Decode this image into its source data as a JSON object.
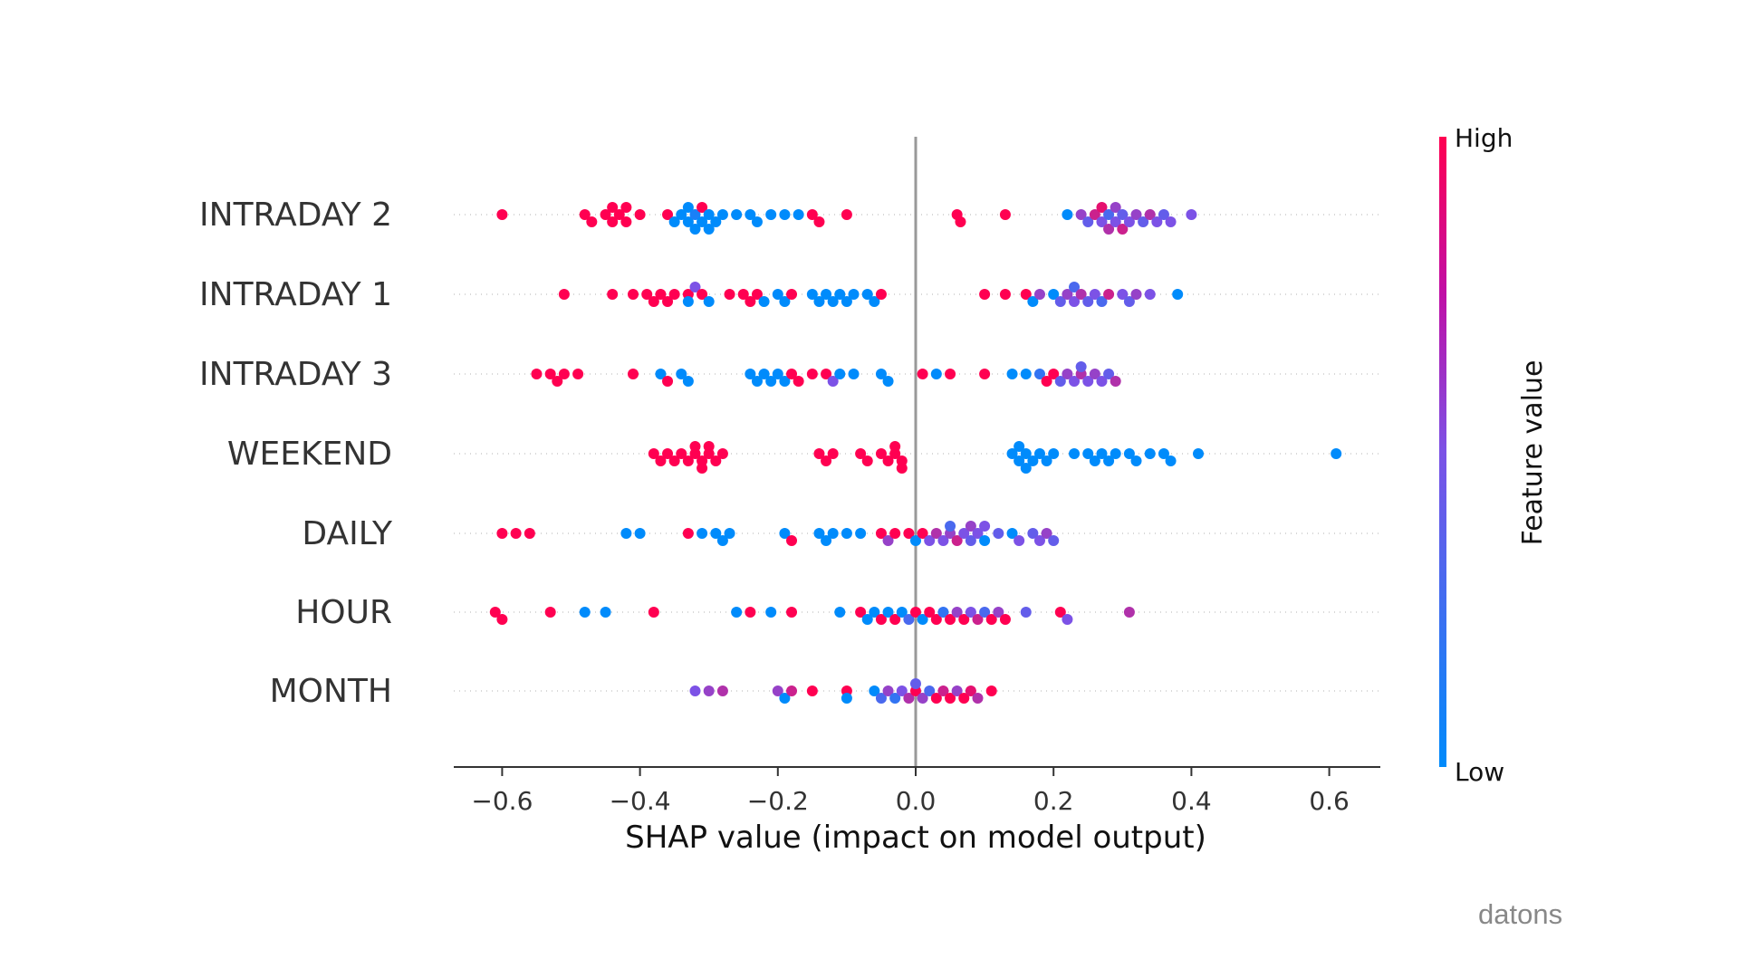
{
  "chart_data": {
    "type": "scatter",
    "subtype": "beeswarm",
    "title": "",
    "xlabel": "SHAP value (impact on model output)",
    "ylabel": "",
    "xlim": [
      -0.67,
      0.67
    ],
    "xticks": [
      -0.6,
      -0.4,
      -0.2,
      0.0,
      0.2,
      0.4,
      0.6
    ],
    "xtick_labels": [
      "−0.6",
      "−0.4",
      "−0.2",
      "0.0",
      "0.2",
      "0.4",
      "0.6"
    ],
    "grid": false,
    "colorbar": {
      "label": "Feature value",
      "high_label": "High",
      "low_label": "Low",
      "low_color": "#008bfb",
      "high_color": "#ff0051"
    },
    "series": [
      {
        "name": "INTRADAY 2",
        "points": [
          [
            -0.6,
            1
          ],
          [
            -0.48,
            1
          ],
          [
            -0.47,
            1
          ],
          [
            -0.45,
            1
          ],
          [
            -0.44,
            1
          ],
          [
            -0.44,
            1
          ],
          [
            -0.43,
            1
          ],
          [
            -0.42,
            1
          ],
          [
            -0.42,
            1
          ],
          [
            -0.4,
            1
          ],
          [
            -0.36,
            1
          ],
          [
            -0.35,
            0
          ],
          [
            -0.34,
            0
          ],
          [
            -0.33,
            0
          ],
          [
            -0.33,
            0
          ],
          [
            -0.32,
            0.1
          ],
          [
            -0.32,
            0
          ],
          [
            -0.31,
            0
          ],
          [
            -0.31,
            1
          ],
          [
            -0.3,
            0
          ],
          [
            -0.3,
            0
          ],
          [
            -0.29,
            0
          ],
          [
            -0.28,
            0
          ],
          [
            -0.26,
            0
          ],
          [
            -0.24,
            0
          ],
          [
            -0.23,
            0
          ],
          [
            -0.21,
            0
          ],
          [
            -0.19,
            0
          ],
          [
            -0.17,
            0
          ],
          [
            -0.15,
            1
          ],
          [
            -0.14,
            1
          ],
          [
            -0.1,
            1
          ],
          [
            0.06,
            1
          ],
          [
            0.065,
            1
          ],
          [
            0.13,
            1
          ],
          [
            0.22,
            0
          ],
          [
            0.24,
            0.6
          ],
          [
            0.25,
            0.4
          ],
          [
            0.26,
            0.8
          ],
          [
            0.27,
            0.5
          ],
          [
            0.27,
            0.9
          ],
          [
            0.28,
            0.3
          ],
          [
            0.28,
            0.7
          ],
          [
            0.29,
            0.5
          ],
          [
            0.29,
            0.6
          ],
          [
            0.3,
            0.4
          ],
          [
            0.3,
            0.8
          ],
          [
            0.31,
            0.5
          ],
          [
            0.32,
            0.6
          ],
          [
            0.33,
            0.4
          ],
          [
            0.34,
            0.7
          ],
          [
            0.35,
            0.5
          ],
          [
            0.36,
            0.4
          ],
          [
            0.37,
            0.5
          ],
          [
            0.4,
            0.5
          ]
        ]
      },
      {
        "name": "INTRADAY 1",
        "points": [
          [
            -0.51,
            1
          ],
          [
            -0.44,
            1
          ],
          [
            -0.41,
            1
          ],
          [
            -0.39,
            1
          ],
          [
            -0.38,
            1
          ],
          [
            -0.37,
            1
          ],
          [
            -0.36,
            1
          ],
          [
            -0.35,
            1
          ],
          [
            -0.33,
            1
          ],
          [
            -0.33,
            0
          ],
          [
            -0.32,
            0.5
          ],
          [
            -0.31,
            1
          ],
          [
            -0.3,
            0
          ],
          [
            -0.27,
            1
          ],
          [
            -0.25,
            1
          ],
          [
            -0.24,
            1
          ],
          [
            -0.23,
            1
          ],
          [
            -0.22,
            0
          ],
          [
            -0.2,
            0
          ],
          [
            -0.19,
            0
          ],
          [
            -0.18,
            1
          ],
          [
            -0.15,
            0
          ],
          [
            -0.14,
            0
          ],
          [
            -0.13,
            0
          ],
          [
            -0.12,
            0
          ],
          [
            -0.11,
            0
          ],
          [
            -0.1,
            0
          ],
          [
            -0.09,
            0
          ],
          [
            -0.07,
            0
          ],
          [
            -0.06,
            0
          ],
          [
            -0.05,
            1
          ],
          [
            0.1,
            1
          ],
          [
            0.13,
            1
          ],
          [
            0.16,
            1
          ],
          [
            0.17,
            0
          ],
          [
            0.18,
            0.6
          ],
          [
            0.2,
            0
          ],
          [
            0.21,
            0.4
          ],
          [
            0.22,
            0.6
          ],
          [
            0.23,
            0.5
          ],
          [
            0.23,
            0.3
          ],
          [
            0.24,
            0.7
          ],
          [
            0.25,
            0.4
          ],
          [
            0.26,
            0.5
          ],
          [
            0.27,
            0.3
          ],
          [
            0.28,
            0.8
          ],
          [
            0.3,
            0.5
          ],
          [
            0.31,
            0.4
          ],
          [
            0.32,
            0.6
          ],
          [
            0.34,
            0.5
          ],
          [
            0.38,
            0
          ]
        ]
      },
      {
        "name": "INTRADAY 3",
        "points": [
          [
            -0.55,
            1
          ],
          [
            -0.53,
            1
          ],
          [
            -0.52,
            1
          ],
          [
            -0.51,
            1
          ],
          [
            -0.49,
            1
          ],
          [
            -0.41,
            1
          ],
          [
            -0.37,
            0
          ],
          [
            -0.36,
            1
          ],
          [
            -0.34,
            0
          ],
          [
            -0.33,
            0
          ],
          [
            -0.24,
            0
          ],
          [
            -0.23,
            0
          ],
          [
            -0.22,
            0
          ],
          [
            -0.21,
            0
          ],
          [
            -0.2,
            0
          ],
          [
            -0.19,
            0
          ],
          [
            -0.18,
            1
          ],
          [
            -0.17,
            1
          ],
          [
            -0.15,
            1
          ],
          [
            -0.13,
            1
          ],
          [
            -0.12,
            0.5
          ],
          [
            -0.11,
            0
          ],
          [
            -0.09,
            0
          ],
          [
            -0.05,
            0
          ],
          [
            -0.04,
            0
          ],
          [
            0.01,
            1
          ],
          [
            0.03,
            0
          ],
          [
            0.05,
            1
          ],
          [
            0.1,
            1
          ],
          [
            0.14,
            0
          ],
          [
            0.16,
            0
          ],
          [
            0.18,
            0.2
          ],
          [
            0.19,
            1
          ],
          [
            0.2,
            1
          ],
          [
            0.21,
            0.4
          ],
          [
            0.22,
            0.6
          ],
          [
            0.23,
            0.5
          ],
          [
            0.24,
            0.7
          ],
          [
            0.24,
            0.4
          ],
          [
            0.25,
            0.5
          ],
          [
            0.26,
            0.6
          ],
          [
            0.27,
            0.5
          ],
          [
            0.28,
            0.4
          ],
          [
            0.29,
            0.7
          ]
        ]
      },
      {
        "name": "WEEKEND",
        "points": [
          [
            -0.38,
            1
          ],
          [
            -0.37,
            1
          ],
          [
            -0.36,
            1
          ],
          [
            -0.35,
            1
          ],
          [
            -0.34,
            1
          ],
          [
            -0.33,
            1
          ],
          [
            -0.32,
            1
          ],
          [
            -0.32,
            1
          ],
          [
            -0.31,
            1
          ],
          [
            -0.31,
            1
          ],
          [
            -0.3,
            1
          ],
          [
            -0.3,
            1
          ],
          [
            -0.29,
            1
          ],
          [
            -0.28,
            1
          ],
          [
            -0.14,
            1
          ],
          [
            -0.13,
            1
          ],
          [
            -0.12,
            1
          ],
          [
            -0.08,
            1
          ],
          [
            -0.07,
            1
          ],
          [
            -0.05,
            1
          ],
          [
            -0.04,
            1
          ],
          [
            -0.03,
            1
          ],
          [
            -0.03,
            1
          ],
          [
            -0.02,
            1
          ],
          [
            -0.02,
            1
          ],
          [
            0.14,
            0
          ],
          [
            0.15,
            0
          ],
          [
            0.15,
            0
          ],
          [
            0.16,
            0
          ],
          [
            0.16,
            0
          ],
          [
            0.17,
            0
          ],
          [
            0.18,
            0
          ],
          [
            0.19,
            0
          ],
          [
            0.2,
            0
          ],
          [
            0.23,
            0
          ],
          [
            0.25,
            0
          ],
          [
            0.26,
            0
          ],
          [
            0.27,
            0
          ],
          [
            0.28,
            0
          ],
          [
            0.29,
            0
          ],
          [
            0.31,
            0
          ],
          [
            0.32,
            0
          ],
          [
            0.34,
            0
          ],
          [
            0.36,
            0
          ],
          [
            0.37,
            0
          ],
          [
            0.41,
            0
          ],
          [
            0.61,
            0
          ]
        ]
      },
      {
        "name": "DAILY",
        "points": [
          [
            -0.6,
            1
          ],
          [
            -0.58,
            1
          ],
          [
            -0.56,
            1
          ],
          [
            -0.42,
            0
          ],
          [
            -0.4,
            0
          ],
          [
            -0.33,
            1
          ],
          [
            -0.31,
            0
          ],
          [
            -0.29,
            0
          ],
          [
            -0.28,
            0
          ],
          [
            -0.27,
            0
          ],
          [
            -0.19,
            0
          ],
          [
            -0.18,
            1
          ],
          [
            -0.14,
            0
          ],
          [
            -0.13,
            0
          ],
          [
            -0.12,
            0
          ],
          [
            -0.1,
            0
          ],
          [
            -0.08,
            0
          ],
          [
            -0.05,
            1
          ],
          [
            -0.04,
            0.6
          ],
          [
            -0.03,
            1
          ],
          [
            -0.01,
            1
          ],
          [
            0.0,
            0
          ],
          [
            0.01,
            1
          ],
          [
            0.02,
            0.5
          ],
          [
            0.03,
            0.7
          ],
          [
            0.04,
            0.5
          ],
          [
            0.05,
            0.6
          ],
          [
            0.05,
            0.3
          ],
          [
            0.06,
            0.8
          ],
          [
            0.07,
            0.5
          ],
          [
            0.08,
            0.4
          ],
          [
            0.08,
            0.6
          ],
          [
            0.09,
            0.5
          ],
          [
            0.1,
            0
          ],
          [
            0.1,
            0.5
          ],
          [
            0.12,
            0.4
          ],
          [
            0.14,
            0
          ],
          [
            0.15,
            0.5
          ],
          [
            0.17,
            0.4
          ],
          [
            0.18,
            0.5
          ],
          [
            0.19,
            0.6
          ],
          [
            0.2,
            0.4
          ]
        ]
      },
      {
        "name": "HOUR",
        "points": [
          [
            -0.61,
            1
          ],
          [
            -0.6,
            1
          ],
          [
            -0.53,
            1
          ],
          [
            -0.48,
            0
          ],
          [
            -0.45,
            0
          ],
          [
            -0.38,
            1
          ],
          [
            -0.26,
            0
          ],
          [
            -0.24,
            1
          ],
          [
            -0.21,
            0
          ],
          [
            -0.18,
            1
          ],
          [
            -0.11,
            0
          ],
          [
            -0.08,
            1
          ],
          [
            -0.07,
            0
          ],
          [
            -0.06,
            0
          ],
          [
            -0.05,
            1
          ],
          [
            -0.04,
            0
          ],
          [
            -0.03,
            1
          ],
          [
            -0.02,
            0
          ],
          [
            -0.01,
            0.3
          ],
          [
            0.0,
            1
          ],
          [
            0.01,
            0
          ],
          [
            0.02,
            1
          ],
          [
            0.03,
            1
          ],
          [
            0.04,
            0.2
          ],
          [
            0.05,
            1
          ],
          [
            0.06,
            0.6
          ],
          [
            0.07,
            1
          ],
          [
            0.08,
            0.5
          ],
          [
            0.09,
            0.8
          ],
          [
            0.1,
            0.3
          ],
          [
            0.11,
            1
          ],
          [
            0.12,
            0.6
          ],
          [
            0.13,
            1
          ],
          [
            0.16,
            0.4
          ],
          [
            0.21,
            1
          ],
          [
            0.22,
            0.5
          ],
          [
            0.31,
            0.7
          ]
        ]
      },
      {
        "name": "MONTH",
        "points": [
          [
            -0.32,
            0.5
          ],
          [
            -0.3,
            0.6
          ],
          [
            -0.28,
            0.7
          ],
          [
            -0.2,
            0.6
          ],
          [
            -0.19,
            0
          ],
          [
            -0.18,
            0.8
          ],
          [
            -0.15,
            1
          ],
          [
            -0.1,
            1
          ],
          [
            -0.1,
            0
          ],
          [
            -0.06,
            0
          ],
          [
            -0.05,
            0.3
          ],
          [
            -0.04,
            0.6
          ],
          [
            -0.03,
            0.2
          ],
          [
            -0.02,
            0.5
          ],
          [
            -0.01,
            0.7
          ],
          [
            0.0,
            1
          ],
          [
            0.0,
            0.4
          ],
          [
            0.01,
            0.6
          ],
          [
            0.02,
            0.3
          ],
          [
            0.03,
            1
          ],
          [
            0.04,
            0.8
          ],
          [
            0.05,
            1
          ],
          [
            0.06,
            0.6
          ],
          [
            0.07,
            1
          ],
          [
            0.08,
            0.9
          ],
          [
            0.09,
            0.7
          ],
          [
            0.11,
            1
          ]
        ]
      }
    ]
  },
  "watermark": "datons"
}
